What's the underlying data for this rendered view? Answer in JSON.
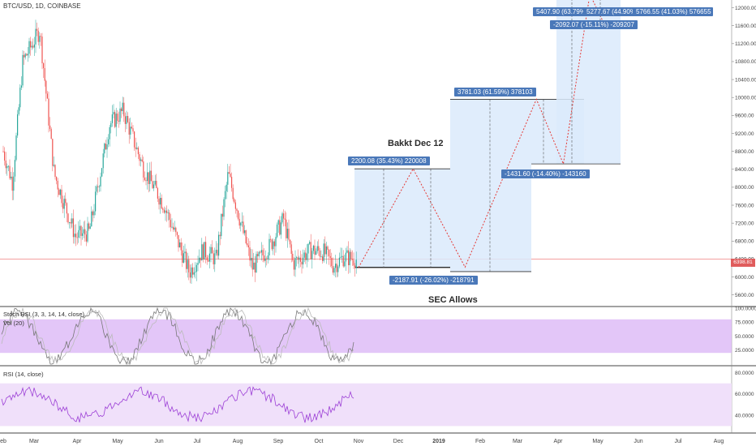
{
  "header": {
    "symbol": "BTC/USD, 1D, COINBASE",
    "stoch_label": "Stoch RSI (3, 3, 14, 14, close)",
    "vol_label": "Vol (20)",
    "rsi_label": "RSI (14, close)",
    "last_price": "6398.81"
  },
  "annotations": {
    "a1": "2200.08 (35.43%) 220008",
    "a2": "-2187.91 (-26.02%) -218791",
    "a3": "3781.03 (61.59%) 378103",
    "a4": "-1431.60 (-14.40%) -143160",
    "a5": "5407.90 (63.79%)",
    "a6": "5277.67 (44.90%) 52776",
    "a7": "5766.55 (41.03%) 576655",
    "a8": "-2092.07 (-15.11%) -209207",
    "text1": "Bakkt Dec 12",
    "text2": "SEC Allows"
  },
  "colors": {
    "up": "#26a69a",
    "down": "#ef5350",
    "projection": "#dbeafc",
    "stoch_band": "#d9b3f5",
    "rsi_band": "#f0e0fa",
    "price_line": "#f08080"
  },
  "chart_data": [
    {
      "type": "candlestick",
      "title": "BTC/USD, 1D, COINBASE",
      "x_ticks": [
        "eb",
        "Mar",
        "Apr",
        "May",
        "Jun",
        "Jul",
        "Aug",
        "Sep",
        "Oct",
        "Nov",
        "Dec",
        "2019",
        "Feb",
        "Mar",
        "Apr",
        "May",
        "Jun",
        "Jul",
        "Aug"
      ],
      "y_ticks": [
        5600,
        6000,
        6400,
        6800,
        7200,
        7600,
        8000,
        8400,
        8800,
        9200,
        9600,
        10000,
        10400,
        10800,
        11200,
        11600,
        12000
      ],
      "ylim": [
        5450,
        12100
      ],
      "close_path": [
        {
          "x": "Feb 01",
          "y": 8800
        },
        {
          "x": "Feb 10",
          "y": 8100
        },
        {
          "x": "Feb 20",
          "y": 10800
        },
        {
          "x": "Mar 05",
          "y": 11500
        },
        {
          "x": "Mar 15",
          "y": 8300
        },
        {
          "x": "Mar 30",
          "y": 6900
        },
        {
          "x": "Apr 10",
          "y": 7000
        },
        {
          "x": "Apr 25",
          "y": 9400
        },
        {
          "x": "May 05",
          "y": 9700
        },
        {
          "x": "May 20",
          "y": 8400
        },
        {
          "x": "Jun 05",
          "y": 7600
        },
        {
          "x": "Jun 25",
          "y": 6100
        },
        {
          "x": "Jul 05",
          "y": 6600
        },
        {
          "x": "Jul 15",
          "y": 6400
        },
        {
          "x": "Jul 24",
          "y": 8300
        },
        {
          "x": "Aug 05",
          "y": 7000
        },
        {
          "x": "Aug 12",
          "y": 6200
        },
        {
          "x": "Aug 25",
          "y": 6700
        },
        {
          "x": "Sep 05",
          "y": 7300
        },
        {
          "x": "Sep 12",
          "y": 6300
        },
        {
          "x": "Sep 25",
          "y": 6600
        },
        {
          "x": "Oct 05",
          "y": 6550
        },
        {
          "x": "Oct 12",
          "y": 6250
        },
        {
          "x": "Oct 20",
          "y": 6450
        },
        {
          "x": "Oct 30",
          "y": 6390
        }
      ],
      "projection_path": [
        {
          "x": "Nov 01",
          "y": 6210
        },
        {
          "x": "Dec 12",
          "y": 8410
        },
        {
          "x": "Jan 20",
          "y": 6220
        },
        {
          "x": "Mar 15",
          "y": 9960
        },
        {
          "x": "Apr 05",
          "y": 8520
        },
        {
          "x": "Apr 25",
          "y": 12300
        },
        {
          "x": "May 05",
          "y": 11680
        }
      ]
    },
    {
      "type": "line",
      "title": "Stoch RSI (3, 3, 14, 14, close)",
      "y_ticks": [
        25,
        50,
        75,
        100
      ],
      "band": [
        20,
        80
      ]
    },
    {
      "type": "line",
      "title": "RSI (14, close)",
      "y_ticks": [
        40,
        60,
        80
      ],
      "band": [
        30,
        70
      ]
    }
  ]
}
